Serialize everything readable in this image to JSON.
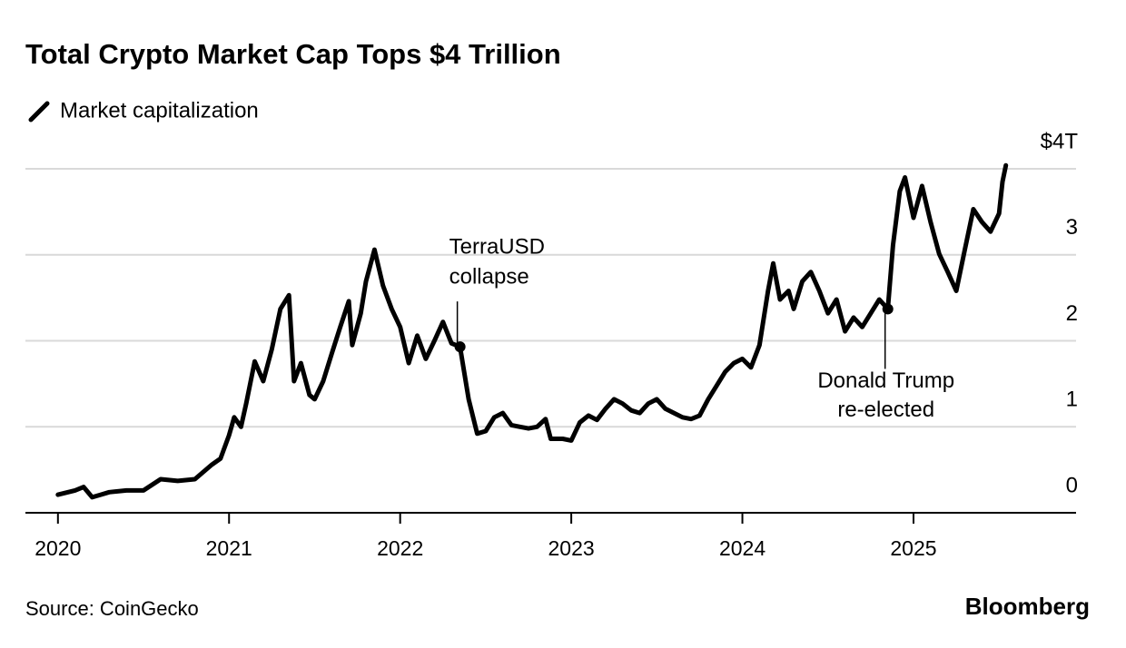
{
  "chart_data": {
    "type": "line",
    "title": "Total Crypto Market Cap Tops $4 Trillion",
    "source": "Source: CoinGecko",
    "brand": "Bloomberg",
    "x": [
      2020.0,
      2020.1,
      2020.15,
      2020.2,
      2020.25,
      2020.3,
      2020.4,
      2020.5,
      2020.6,
      2020.7,
      2020.8,
      2020.9,
      2020.95,
      2021.0,
      2021.03,
      2021.07,
      2021.1,
      2021.15,
      2021.2,
      2021.25,
      2021.3,
      2021.35,
      2021.38,
      2021.42,
      2021.47,
      2021.5,
      2021.55,
      2021.6,
      2021.65,
      2021.7,
      2021.72,
      2021.77,
      2021.8,
      2021.85,
      2021.9,
      2021.95,
      2022.0,
      2022.05,
      2022.1,
      2022.15,
      2022.2,
      2022.25,
      2022.3,
      2022.35,
      2022.4,
      2022.45,
      2022.5,
      2022.55,
      2022.6,
      2022.65,
      2022.7,
      2022.75,
      2022.8,
      2022.85,
      2022.88,
      2022.95,
      2023.0,
      2023.05,
      2023.1,
      2023.15,
      2023.2,
      2023.25,
      2023.3,
      2023.35,
      2023.4,
      2023.45,
      2023.5,
      2023.55,
      2023.6,
      2023.65,
      2023.7,
      2023.75,
      2023.8,
      2023.85,
      2023.9,
      2023.95,
      2024.0,
      2024.05,
      2024.1,
      2024.15,
      2024.18,
      2024.22,
      2024.27,
      2024.3,
      2024.35,
      2024.4,
      2024.45,
      2024.5,
      2024.55,
      2024.6,
      2024.65,
      2024.7,
      2024.75,
      2024.8,
      2024.85,
      2024.88,
      2024.92,
      2024.95,
      2025.0,
      2025.05,
      2025.1,
      2025.15,
      2025.2,
      2025.25,
      2025.3,
      2025.35,
      2025.4,
      2025.45,
      2025.5,
      2025.52,
      2025.54
    ],
    "series": [
      {
        "name": "Market capitalization",
        "color": "#000000",
        "values": [
          0.21,
          0.26,
          0.3,
          0.18,
          0.21,
          0.24,
          0.26,
          0.26,
          0.39,
          0.37,
          0.39,
          0.56,
          0.63,
          0.9,
          1.11,
          1.0,
          1.27,
          1.76,
          1.53,
          1.9,
          2.37,
          2.53,
          1.53,
          1.74,
          1.37,
          1.32,
          1.53,
          1.85,
          2.16,
          2.46,
          1.95,
          2.32,
          2.69,
          3.06,
          2.64,
          2.37,
          2.16,
          1.74,
          2.06,
          1.79,
          2.0,
          2.22,
          1.97,
          1.93,
          1.32,
          0.92,
          0.95,
          1.11,
          1.16,
          1.02,
          1.0,
          0.98,
          1.0,
          1.09,
          0.86,
          0.86,
          0.84,
          1.05,
          1.13,
          1.08,
          1.21,
          1.32,
          1.27,
          1.19,
          1.16,
          1.27,
          1.32,
          1.21,
          1.16,
          1.11,
          1.09,
          1.13,
          1.32,
          1.48,
          1.64,
          1.74,
          1.79,
          1.69,
          1.95,
          2.58,
          2.9,
          2.48,
          2.58,
          2.37,
          2.69,
          2.8,
          2.58,
          2.32,
          2.48,
          2.11,
          2.27,
          2.16,
          2.32,
          2.48,
          2.37,
          3.11,
          3.74,
          3.9,
          3.43,
          3.8,
          3.38,
          3.01,
          2.8,
          2.58,
          3.06,
          3.53,
          3.38,
          3.27,
          3.48,
          3.85,
          4.04
        ]
      }
    ],
    "xlim": [
      2019.81,
      2025.95
    ],
    "xticks": [
      2020,
      2021,
      2022,
      2023,
      2024,
      2025
    ],
    "ylim": [
      0,
      4
    ],
    "yticks": [
      0,
      1,
      2,
      3,
      {
        "value": 4,
        "label": "$4T"
      }
    ],
    "grid": true,
    "annotations": [
      {
        "text": [
          "TerraUSD",
          "collapse"
        ],
        "x": 2022.35,
        "y": 1.93
      },
      {
        "text": [
          "Donald Trump",
          "re-elected"
        ],
        "x": 2024.85,
        "y": 2.37
      }
    ]
  }
}
